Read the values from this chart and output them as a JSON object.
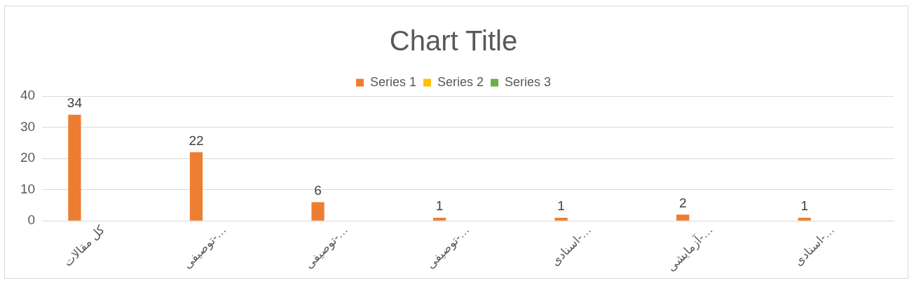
{
  "chart_data": {
    "type": "bar",
    "title": "Chart Title",
    "categories": [
      "کل مقالات",
      "توصیفی-…",
      "توصیفی-…",
      "توصیفی-…",
      "اسنادی-…",
      "آزمایشی-…",
      "اسنادی-…"
    ],
    "series": [
      {
        "name": "Series 1",
        "color": "#ed7d31",
        "values": [
          34,
          22,
          6,
          1,
          1,
          2,
          1
        ]
      },
      {
        "name": "Series 2",
        "color": "#ffc000",
        "values": [
          null,
          null,
          null,
          null,
          null,
          null,
          null
        ]
      },
      {
        "name": "Series 3",
        "color": "#70ad47",
        "values": [
          null,
          null,
          null,
          null,
          null,
          null,
          null
        ]
      }
    ],
    "ylim": [
      0,
      40
    ],
    "yticks": [
      0,
      10,
      20,
      30,
      40
    ],
    "grid": "y",
    "legend": "top",
    "data_labels": true
  }
}
